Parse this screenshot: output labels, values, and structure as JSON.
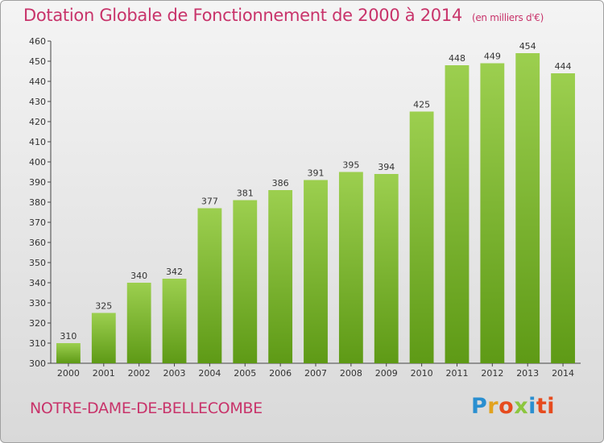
{
  "chart_data": {
    "type": "bar",
    "title": "Dotation Globale de Fonctionnement de 2000 à 2014",
    "unit_label": "(en milliers d'€)",
    "categories": [
      "2000",
      "2001",
      "2002",
      "2003",
      "2004",
      "2005",
      "2006",
      "2007",
      "2008",
      "2009",
      "2010",
      "2011",
      "2012",
      "2013",
      "2014"
    ],
    "values": [
      310,
      325,
      340,
      342,
      377,
      381,
      386,
      391,
      395,
      394,
      425,
      448,
      449,
      454,
      444
    ],
    "xlabel": "",
    "ylabel": "",
    "ylim": [
      300,
      460
    ],
    "yticks": [
      300,
      310,
      320,
      330,
      340,
      350,
      360,
      370,
      380,
      390,
      400,
      410,
      420,
      430,
      440,
      450,
      460
    ],
    "grid": false,
    "bar_color": "#8cc63f",
    "bar_color_dark": "#5e9a16"
  },
  "footer": {
    "commune": "NOTRE-DAME-DE-BELLECOMBE",
    "logo": "Proxiti"
  },
  "colors": {
    "accent": "#c8336a"
  }
}
